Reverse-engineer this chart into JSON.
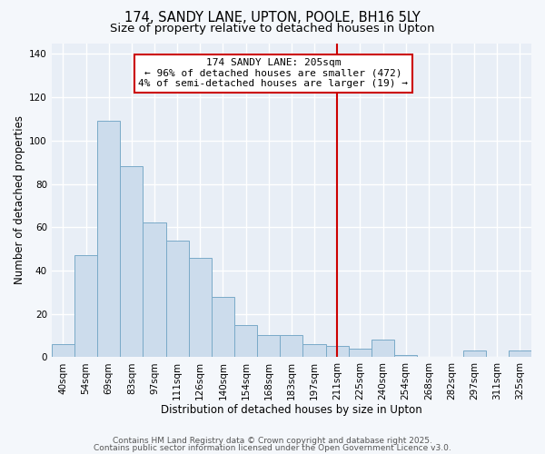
{
  "title": "174, SANDY LANE, UPTON, POOLE, BH16 5LY",
  "subtitle": "Size of property relative to detached houses in Upton",
  "xlabel": "Distribution of detached houses by size in Upton",
  "ylabel": "Number of detached properties",
  "bar_color": "#ccdcec",
  "bar_edge_color": "#7aaac8",
  "background_color": "#f4f7fb",
  "plot_bg_color": "#e8eef6",
  "grid_color": "#ffffff",
  "categories": [
    "40sqm",
    "54sqm",
    "69sqm",
    "83sqm",
    "97sqm",
    "111sqm",
    "126sqm",
    "140sqm",
    "154sqm",
    "168sqm",
    "183sqm",
    "197sqm",
    "211sqm",
    "225sqm",
    "240sqm",
    "254sqm",
    "268sqm",
    "282sqm",
    "297sqm",
    "311sqm",
    "325sqm"
  ],
  "values": [
    6,
    47,
    109,
    88,
    62,
    54,
    46,
    28,
    15,
    10,
    10,
    6,
    5,
    4,
    8,
    1,
    0,
    0,
    3,
    0,
    3
  ],
  "ylim": [
    0,
    145
  ],
  "yticks": [
    0,
    20,
    40,
    60,
    80,
    100,
    120,
    140
  ],
  "vline_x": 12.0,
  "vline_color": "#cc0000",
  "annotation_title": "174 SANDY LANE: 205sqm",
  "annotation_line1": "← 96% of detached houses are smaller (472)",
  "annotation_line2": "4% of semi-detached houses are larger (19) →",
  "annotation_box_color": "#ffffff",
  "annotation_box_edge": "#cc0000",
  "footer1": "Contains HM Land Registry data © Crown copyright and database right 2025.",
  "footer2": "Contains public sector information licensed under the Open Government Licence v3.0.",
  "title_fontsize": 10.5,
  "subtitle_fontsize": 9.5,
  "axis_label_fontsize": 8.5,
  "tick_fontsize": 7.5,
  "annotation_fontsize": 8,
  "footer_fontsize": 6.5
}
